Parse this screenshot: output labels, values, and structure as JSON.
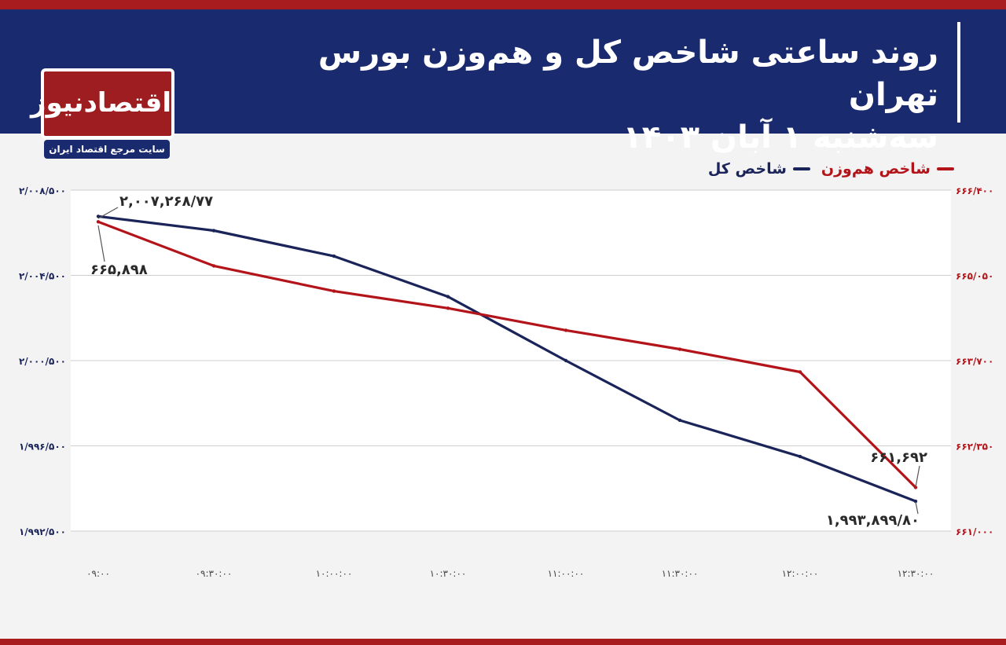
{
  "header": {
    "title_line1": "روند ساعتی شاخص کل و هم‌وزن بورس تهران",
    "title_line2": "سه‌شنبه ۱ آبان ۱۴۰۳"
  },
  "logo": {
    "name": "اقتصادنیوز",
    "tagline": "سایت مرجع اقتصاد ایران"
  },
  "colors": {
    "header_bg": "#1a2a6e",
    "accent_red": "#a81b1e",
    "series_total": "#1a2459",
    "series_equal": "#b31419"
  },
  "chart_data": {
    "type": "line",
    "x": [
      "۰۹:۰۰",
      "۰۹:۳۰:۰۰",
      "۱۰:۰۰:۰۰",
      "۱۰:۳۰:۰۰",
      "۱۱:۰۰:۰۰",
      "۱۱:۳۰:۰۰",
      "۱۲:۰۰:۰۰",
      "۱۲:۳۰:۰۰"
    ],
    "series": [
      {
        "name": "شاخص کل",
        "axis": "left",
        "color": "#1a2459",
        "values": [
          2007268.77,
          2006600,
          2005400,
          2003500,
          2000500,
          1997700,
          1996000,
          1993899.8
        ]
      },
      {
        "name": "شاخص هم‌وزن",
        "axis": "right",
        "color": "#b31419",
        "values": [
          665898,
          665200,
          664800,
          664530,
          664180,
          663880,
          663520,
          661692
        ]
      }
    ],
    "y_left": {
      "lim": [
        1992500,
        2008500
      ],
      "ticks": [
        2008500,
        2004500,
        2000500,
        1996500,
        1992500
      ],
      "tick_labels": [
        "۲/۰۰۸/۵۰۰",
        "۲/۰۰۴/۵۰۰",
        "۲/۰۰۰/۵۰۰",
        "۱/۹۹۶/۵۰۰",
        "۱/۹۹۲/۵۰۰"
      ]
    },
    "y_right": {
      "lim": [
        661000,
        666400
      ],
      "ticks": [
        666400,
        665050,
        663700,
        662350,
        661000
      ],
      "tick_labels": [
        "۶۶۶/۴۰۰",
        "۶۶۵/۰۵۰",
        "۶۶۳/۷۰۰",
        "۶۶۲/۳۵۰",
        "۶۶۱/۰۰۰"
      ]
    },
    "annotations": [
      {
        "series": 0,
        "index": 0,
        "text": "۲,۰۰۷,۲۶۸/۷۷"
      },
      {
        "series": 1,
        "index": 0,
        "text": "۶۶۵,۸۹۸"
      },
      {
        "series": 1,
        "index": 7,
        "text": "۶۶۱,۶۹۲"
      },
      {
        "series": 0,
        "index": 7,
        "text": "۱,۹۹۳,۸۹۹/۸۰"
      }
    ],
    "grid": true,
    "legend": "top-right"
  }
}
